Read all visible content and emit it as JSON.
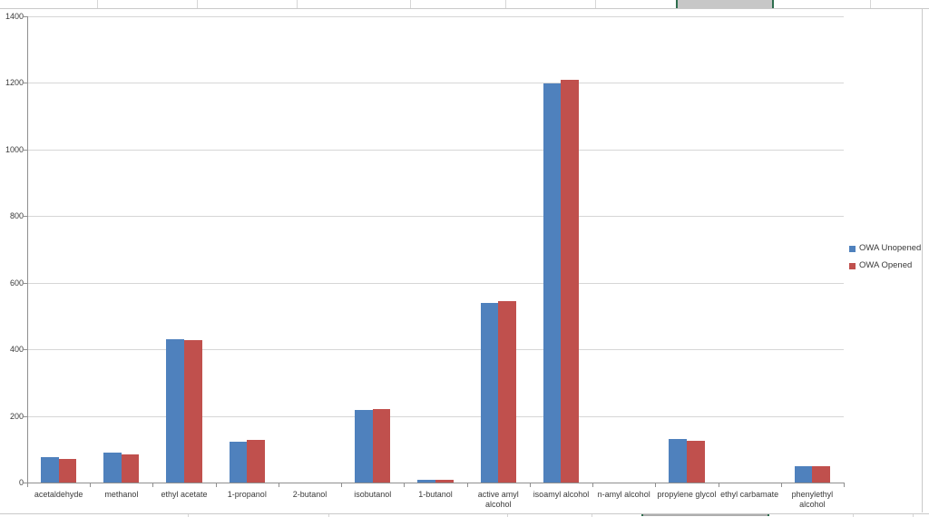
{
  "chart_data": {
    "type": "bar",
    "title": "",
    "categories": [
      "acetaldehyde",
      "methanol",
      "ethyl acetate",
      "1-propanol",
      "2-butanol",
      "isobutanol",
      "1-butanol",
      "active amyl\nalcohol",
      "isoamyl alcohol",
      "n-amyl alcohol",
      "propylene glycol",
      "ethyl carbamate",
      "phenylethyl\nalcohol"
    ],
    "series": [
      {
        "name": "OWA Unopened",
        "color": "#4F81BD",
        "values": [
          75,
          90,
          430,
          123,
          0,
          219,
          8,
          540,
          1198,
          0,
          130,
          0,
          50
        ]
      },
      {
        "name": "OWA Opened",
        "color": "#C0504D",
        "values": [
          70,
          85,
          428,
          127,
          0,
          220,
          8,
          546,
          1209,
          0,
          125,
          0,
          50
        ]
      }
    ],
    "xlabel": "",
    "ylabel": "",
    "ylim": [
      0,
      1400
    ],
    "ytick_interval": 200,
    "yticks": [
      "0",
      "200",
      "400",
      "600",
      "800",
      "1000",
      "1200",
      "1400"
    ],
    "grid": true,
    "legend_position": "right-middle"
  },
  "colors": {
    "series1": "#4F81BD",
    "series2": "#C0504D",
    "plot_gridline": "#d6d6d6",
    "axis_line": "#8f8f8f",
    "label_text": "#3a3a3a",
    "chart_border": "#c9c9c9",
    "cell_gridline": "#d6d6d6",
    "selection_fill": "#c7c7c7",
    "selection_border": "#2e6e4e"
  }
}
